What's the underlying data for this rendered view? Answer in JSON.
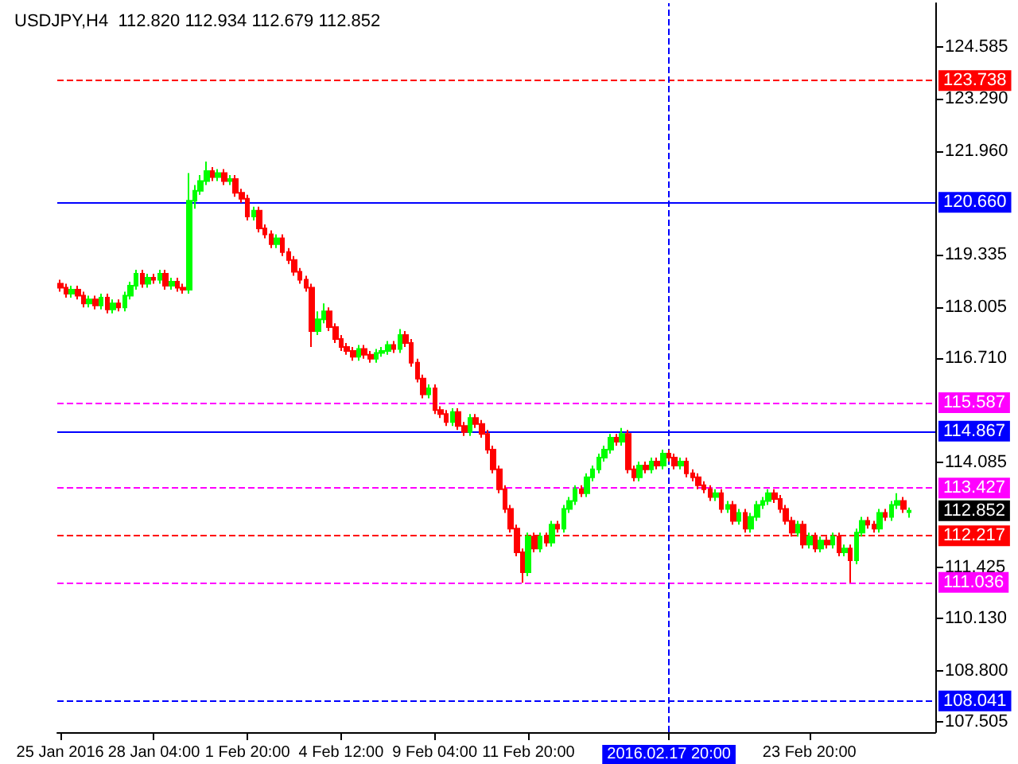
{
  "chart_data": {
    "type": "candlestick",
    "title": "USDJPY,H4  112.820 112.934 112.679 112.852",
    "categories": [
      "25 Jan 2016",
      null,
      null,
      null,
      null,
      null,
      null,
      null,
      null,
      null,
      null,
      null,
      null,
      null,
      null,
      null,
      "28 Jan 04:00",
      null,
      null,
      null,
      null,
      null,
      null,
      null,
      null,
      null,
      null,
      null,
      null,
      null,
      null,
      null,
      "1 Feb 20:00",
      null,
      null,
      null,
      null,
      null,
      null,
      null,
      null,
      null,
      null,
      null,
      null,
      null,
      null,
      null,
      "4 Feb 12:00",
      null,
      null,
      null,
      null,
      null,
      null,
      null,
      null,
      null,
      null,
      null,
      null,
      null,
      null,
      null,
      "9 Feb 04:00",
      null,
      null,
      null,
      null,
      null,
      null,
      null,
      null,
      null,
      null,
      null,
      null,
      null,
      null,
      null,
      "11 Feb 20:00",
      null,
      null,
      null,
      null,
      null,
      null,
      null,
      null,
      null,
      null,
      null,
      null,
      null,
      null,
      null,
      null,
      null,
      null,
      null,
      null,
      null,
      null,
      null,
      "2016.02.17 20:00",
      null,
      null,
      null,
      null,
      null,
      null,
      null,
      null,
      null,
      null,
      null,
      null,
      null,
      null,
      null,
      null,
      null,
      null,
      null,
      null,
      null,
      null,
      null,
      "23 Feb 20:00",
      null,
      null,
      null,
      null,
      null,
      null,
      null,
      null,
      null,
      null,
      null,
      null,
      null,
      null,
      null,
      null,
      null,
      null,
      null,
      null,
      null
    ],
    "ohlc": [
      [
        118.6,
        118.7,
        118.4,
        118.5
      ],
      [
        118.5,
        118.6,
        118.25,
        118.35
      ],
      [
        118.35,
        118.55,
        118.25,
        118.45
      ],
      [
        118.45,
        118.55,
        118.2,
        118.3
      ],
      [
        118.3,
        118.4,
        118.0,
        118.1
      ],
      [
        118.1,
        118.3,
        118.0,
        118.2
      ],
      [
        118.2,
        118.3,
        117.95,
        118.05
      ],
      [
        118.05,
        118.35,
        117.95,
        118.25
      ],
      [
        118.25,
        118.35,
        117.85,
        117.95
      ],
      [
        117.95,
        118.2,
        117.85,
        118.1
      ],
      [
        118.1,
        118.2,
        117.9,
        118.0
      ],
      [
        118.0,
        118.4,
        117.9,
        118.3
      ],
      [
        118.3,
        118.65,
        118.2,
        118.55
      ],
      [
        118.55,
        118.95,
        118.45,
        118.85
      ],
      [
        118.85,
        118.95,
        118.5,
        118.6
      ],
      [
        118.6,
        118.85,
        118.5,
        118.75
      ],
      [
        118.75,
        118.85,
        118.6,
        118.7
      ],
      [
        118.7,
        118.95,
        118.6,
        118.85
      ],
      [
        118.85,
        118.95,
        118.45,
        118.55
      ],
      [
        118.55,
        118.75,
        118.45,
        118.65
      ],
      [
        118.65,
        118.75,
        118.4,
        118.5
      ],
      [
        118.5,
        118.6,
        118.35,
        118.45
      ],
      [
        118.45,
        121.4,
        118.35,
        120.7
      ],
      [
        120.7,
        121.1,
        120.5,
        120.95
      ],
      [
        120.95,
        121.35,
        120.85,
        121.2
      ],
      [
        121.2,
        121.69,
        121.1,
        121.45
      ],
      [
        121.45,
        121.55,
        121.2,
        121.3
      ],
      [
        121.3,
        121.5,
        121.2,
        121.4
      ],
      [
        121.4,
        121.5,
        121.1,
        121.2
      ],
      [
        121.2,
        121.35,
        121.1,
        121.25
      ],
      [
        121.25,
        121.35,
        120.8,
        120.9
      ],
      [
        120.9,
        121.0,
        120.65,
        120.75
      ],
      [
        120.75,
        120.85,
        120.2,
        120.3
      ],
      [
        120.3,
        120.55,
        120.2,
        120.45
      ],
      [
        120.45,
        120.55,
        119.9,
        120.0
      ],
      [
        120.0,
        120.1,
        119.75,
        119.85
      ],
      [
        119.85,
        119.95,
        119.5,
        119.6
      ],
      [
        119.6,
        119.85,
        119.5,
        119.75
      ],
      [
        119.75,
        119.85,
        119.3,
        119.4
      ],
      [
        119.4,
        119.5,
        119.1,
        119.2
      ],
      [
        119.2,
        119.3,
        118.8,
        118.9
      ],
      [
        118.9,
        119.0,
        118.6,
        118.7
      ],
      [
        118.7,
        118.8,
        118.4,
        118.5
      ],
      [
        118.5,
        118.6,
        117.0,
        117.4
      ],
      [
        117.4,
        117.9,
        117.3,
        117.7
      ],
      [
        117.7,
        118.1,
        117.6,
        117.9
      ],
      [
        117.9,
        118.0,
        117.4,
        117.5
      ],
      [
        117.5,
        117.6,
        117.1,
        117.2
      ],
      [
        117.2,
        117.3,
        116.9,
        117.0
      ],
      [
        117.0,
        117.1,
        116.8,
        116.9
      ],
      [
        116.9,
        117.0,
        116.65,
        116.75
      ],
      [
        116.75,
        117.05,
        116.65,
        116.95
      ],
      [
        116.95,
        117.05,
        116.7,
        116.8
      ],
      [
        116.8,
        116.9,
        116.6,
        116.7
      ],
      [
        116.7,
        116.95,
        116.6,
        116.85
      ],
      [
        116.85,
        117.0,
        116.75,
        116.9
      ],
      [
        116.9,
        117.15,
        116.8,
        117.05
      ],
      [
        117.05,
        117.15,
        116.85,
        116.95
      ],
      [
        116.95,
        117.45,
        116.85,
        117.3
      ],
      [
        117.3,
        117.4,
        117.0,
        117.1
      ],
      [
        117.1,
        117.2,
        116.5,
        116.6
      ],
      [
        116.6,
        116.7,
        116.1,
        116.2
      ],
      [
        116.2,
        116.3,
        115.7,
        115.8
      ],
      [
        115.8,
        116.05,
        115.7,
        115.95
      ],
      [
        115.95,
        116.05,
        115.3,
        115.4
      ],
      [
        115.4,
        115.5,
        115.2,
        115.3
      ],
      [
        115.3,
        115.4,
        115.0,
        115.1
      ],
      [
        115.1,
        115.45,
        115.0,
        115.35
      ],
      [
        115.35,
        115.45,
        114.9,
        115.0
      ],
      [
        115.0,
        115.1,
        114.75,
        114.85
      ],
      [
        114.85,
        115.3,
        114.75,
        115.2
      ],
      [
        115.2,
        115.3,
        114.95,
        115.05
      ],
      [
        115.05,
        115.15,
        114.7,
        114.8
      ],
      [
        114.8,
        114.9,
        114.3,
        114.4
      ],
      [
        114.4,
        114.5,
        113.8,
        113.9
      ],
      [
        113.9,
        114.0,
        113.3,
        113.4
      ],
      [
        113.4,
        113.5,
        112.8,
        112.9
      ],
      [
        112.9,
        113.0,
        112.3,
        112.4
      ],
      [
        112.4,
        112.5,
        111.7,
        111.8
      ],
      [
        111.8,
        111.9,
        111.03,
        111.3
      ],
      [
        111.3,
        112.3,
        111.2,
        112.2
      ],
      [
        112.2,
        112.3,
        111.8,
        111.9
      ],
      [
        111.9,
        112.3,
        111.8,
        112.2
      ],
      [
        112.2,
        112.3,
        111.95,
        112.05
      ],
      [
        112.05,
        112.6,
        111.95,
        112.5
      ],
      [
        112.5,
        112.6,
        112.3,
        112.4
      ],
      [
        112.4,
        113.0,
        112.3,
        112.9
      ],
      [
        112.9,
        113.2,
        112.8,
        113.1
      ],
      [
        113.1,
        113.5,
        113.0,
        113.4
      ],
      [
        113.4,
        113.5,
        113.2,
        113.3
      ],
      [
        113.3,
        113.8,
        113.2,
        113.7
      ],
      [
        113.7,
        114.0,
        113.6,
        113.9
      ],
      [
        113.9,
        114.3,
        113.8,
        114.2
      ],
      [
        114.2,
        114.5,
        114.1,
        114.4
      ],
      [
        114.4,
        114.8,
        114.3,
        114.7
      ],
      [
        114.7,
        114.8,
        114.5,
        114.6
      ],
      [
        114.6,
        114.95,
        114.5,
        114.8
      ],
      [
        114.8,
        114.9,
        113.8,
        113.9
      ],
      [
        113.9,
        114.0,
        113.6,
        113.7
      ],
      [
        113.7,
        114.1,
        113.6,
        114.0
      ],
      [
        114.0,
        114.1,
        113.8,
        113.9
      ],
      [
        113.9,
        114.2,
        113.8,
        114.1
      ],
      [
        114.1,
        114.2,
        113.9,
        114.0
      ],
      [
        114.0,
        114.4,
        113.9,
        114.3
      ],
      [
        114.3,
        114.4,
        114.1,
        114.2
      ],
      [
        114.2,
        114.3,
        113.9,
        114.0
      ],
      [
        114.0,
        114.2,
        113.9,
        114.1
      ],
      [
        114.1,
        114.2,
        113.7,
        113.8
      ],
      [
        113.8,
        113.9,
        113.6,
        113.7
      ],
      [
        113.7,
        113.8,
        113.4,
        113.5
      ],
      [
        113.5,
        113.6,
        113.3,
        113.4
      ],
      [
        113.4,
        113.5,
        113.1,
        113.2
      ],
      [
        113.2,
        113.4,
        113.1,
        113.3
      ],
      [
        113.3,
        113.4,
        112.8,
        112.9
      ],
      [
        112.9,
        113.1,
        112.8,
        113.0
      ],
      [
        113.0,
        113.1,
        112.5,
        112.6
      ],
      [
        112.6,
        112.9,
        112.5,
        112.8
      ],
      [
        112.8,
        112.9,
        112.3,
        112.4
      ],
      [
        112.4,
        112.8,
        112.3,
        112.7
      ],
      [
        112.7,
        113.1,
        112.6,
        113.0
      ],
      [
        113.0,
        113.2,
        112.9,
        113.1
      ],
      [
        113.1,
        113.4,
        113.0,
        113.3
      ],
      [
        113.3,
        113.4,
        113.05,
        113.15
      ],
      [
        113.15,
        113.25,
        112.8,
        112.9
      ],
      [
        112.9,
        113.0,
        112.5,
        112.6
      ],
      [
        112.6,
        112.7,
        112.2,
        112.3
      ],
      [
        112.3,
        112.6,
        112.2,
        112.5
      ],
      [
        112.5,
        112.6,
        111.9,
        112.0
      ],
      [
        112.0,
        112.3,
        111.9,
        112.2
      ],
      [
        112.2,
        112.3,
        111.8,
        111.9
      ],
      [
        111.9,
        112.2,
        111.8,
        112.1
      ],
      [
        112.1,
        112.2,
        111.9,
        112.0
      ],
      [
        112.0,
        112.3,
        111.9,
        112.2
      ],
      [
        112.2,
        112.3,
        111.7,
        111.8
      ],
      [
        111.8,
        112.0,
        111.7,
        111.9
      ],
      [
        111.9,
        112.0,
        111.03,
        111.6
      ],
      [
        111.6,
        112.4,
        111.5,
        112.3
      ],
      [
        112.3,
        112.7,
        112.2,
        112.6
      ],
      [
        112.6,
        112.7,
        112.4,
        112.5
      ],
      [
        112.5,
        112.6,
        112.3,
        112.4
      ],
      [
        112.4,
        112.9,
        112.3,
        112.8
      ],
      [
        112.8,
        112.9,
        112.6,
        112.7
      ],
      [
        112.7,
        113.1,
        112.6,
        113.0
      ],
      [
        113.0,
        113.3,
        112.9,
        113.1
      ],
      [
        113.1,
        113.2,
        112.8,
        112.9
      ],
      [
        112.82,
        112.934,
        112.679,
        112.852
      ],
      null,
      null,
      null,
      null
    ],
    "colors": [
      "#ff0000",
      "#ff0000",
      "#00ff00",
      "#ff0000",
      "#ff0000",
      "#00ff00",
      "#ff0000",
      "#00ff00",
      "#ff0000",
      "#00ff00",
      "#ff0000",
      "#00ff00",
      "#00ff00",
      "#00ff00",
      "#ff0000",
      "#00ff00",
      "#ff0000",
      "#00ff00",
      "#ff0000",
      "#00ff00",
      "#ff0000",
      "#ff0000",
      "#00ff00",
      "#00ff00",
      "#00ff00",
      "#00ff00",
      "#ff0000",
      "#00ff00",
      "#ff0000",
      "#00ff00",
      "#ff0000",
      "#ff0000",
      "#ff0000",
      "#00ff00",
      "#ff0000",
      "#ff0000",
      "#ff0000",
      "#00ff00",
      "#ff0000",
      "#ff0000",
      "#ff0000",
      "#ff0000",
      "#ff0000",
      "#ff0000",
      "#00ff00",
      "#00ff00",
      "#ff0000",
      "#ff0000",
      "#ff0000",
      "#ff0000",
      "#ff0000",
      "#00ff00",
      "#ff0000",
      "#ff0000",
      "#00ff00",
      "#00ff00",
      "#00ff00",
      "#ff0000",
      "#00ff00",
      "#ff0000",
      "#ff0000",
      "#ff0000",
      "#ff0000",
      "#00ff00",
      "#ff0000",
      "#ff0000",
      "#ff0000",
      "#00ff00",
      "#ff0000",
      "#ff0000",
      "#00ff00",
      "#ff0000",
      "#ff0000",
      "#ff0000",
      "#ff0000",
      "#ff0000",
      "#ff0000",
      "#ff0000",
      "#ff0000",
      "#ff0000",
      "#00ff00",
      "#ff0000",
      "#00ff00",
      "#ff0000",
      "#00ff00",
      "#ff0000",
      "#00ff00",
      "#00ff00",
      "#00ff00",
      "#ff0000",
      "#00ff00",
      "#00ff00",
      "#00ff00",
      "#00ff00",
      "#00ff00",
      "#ff0000",
      "#00ff00",
      "#ff0000",
      "#ff0000",
      "#00ff00",
      "#ff0000",
      "#00ff00",
      "#ff0000",
      "#00ff00",
      "#ff0000",
      "#ff0000",
      "#00ff00",
      "#ff0000",
      "#ff0000",
      "#ff0000",
      "#ff0000",
      "#ff0000",
      "#00ff00",
      "#ff0000",
      "#00ff00",
      "#ff0000",
      "#00ff00",
      "#ff0000",
      "#00ff00",
      "#00ff00",
      "#00ff00",
      "#00ff00",
      "#ff0000",
      "#ff0000",
      "#ff0000",
      "#ff0000",
      "#00ff00",
      "#ff0000",
      "#00ff00",
      "#ff0000",
      "#00ff00",
      "#ff0000",
      "#00ff00",
      "#ff0000",
      "#00ff00",
      "#ff0000",
      "#00ff00",
      "#00ff00",
      "#ff0000",
      "#ff0000",
      "#00ff00",
      "#ff0000",
      "#00ff00",
      "#00ff00",
      "#ff0000",
      "#00ff00",
      null,
      null,
      null,
      null
    ],
    "ylim": [
      107.25,
      125.7
    ],
    "yticks": [
      124.585,
      {
        "value": 123.29,
        "label": "123.290"
      },
      {
        "value": 121.96,
        "label": "121.960"
      },
      119.335,
      118.005,
      {
        "value": 116.71,
        "label": "116.710"
      },
      114.085,
      111.425,
      {
        "value": 110.13,
        "label": "110.130"
      },
      {
        "value": 108.8,
        "label": "108.800"
      },
      107.505
    ],
    "ref_lines": [
      {
        "axis": "y",
        "value": 123.738,
        "label": "123.738",
        "color": "#ff0000",
        "line_style": "dashed"
      },
      {
        "axis": "y",
        "value": 120.66,
        "label": "120.660",
        "color": "#0000ff",
        "line_style": "solid"
      },
      {
        "axis": "y",
        "value": 115.587,
        "label": "115.587",
        "color": "#ff00ff",
        "line_style": "dashed"
      },
      {
        "axis": "y",
        "value": 114.867,
        "label": "114.867",
        "color": "#0000ff",
        "line_style": "solid"
      },
      {
        "axis": "y",
        "value": 113.427,
        "label": "113.427",
        "color": "#ff00ff",
        "line_style": "dashed"
      },
      {
        "axis": "y",
        "value": 112.217,
        "label": "112.217",
        "color": "#ff0000",
        "line_style": "dashed"
      },
      {
        "axis": "y",
        "value": 111.036,
        "label": "111.036",
        "color": "#ff00ff",
        "line_style": "dashed"
      },
      {
        "axis": "y",
        "value": 108.041,
        "label": "108.041",
        "color": "#0000ff",
        "line_style": "dashed"
      },
      {
        "axis": "x",
        "value": "2016.02.17 20:00",
        "color": "#0000ff",
        "line_style": "dashed"
      }
    ],
    "annotations": [
      "112.852"
    ]
  }
}
